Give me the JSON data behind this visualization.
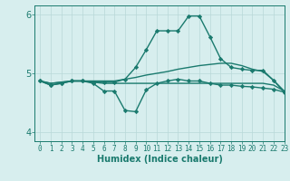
{
  "xlabel": "Humidex (Indice chaleur)",
  "bg_color": "#d7eeee",
  "line_color": "#1a7a6e",
  "grid_color": "#b8d8d8",
  "xlim": [
    -0.5,
    23
  ],
  "ylim": [
    3.85,
    6.15
  ],
  "yticks": [
    4,
    5,
    6
  ],
  "xticks": [
    0,
    1,
    2,
    3,
    4,
    5,
    6,
    7,
    8,
    9,
    10,
    11,
    12,
    13,
    14,
    15,
    16,
    17,
    18,
    19,
    20,
    21,
    22,
    23
  ],
  "series": [
    {
      "x": [
        0,
        1,
        2,
        3,
        4,
        5,
        6,
        7,
        8,
        9,
        10,
        11,
        12,
        13,
        14,
        15,
        16,
        17,
        18,
        19,
        20,
        21,
        22,
        23
      ],
      "y": [
        4.87,
        4.8,
        4.83,
        4.87,
        4.87,
        4.85,
        4.85,
        4.85,
        4.9,
        5.1,
        5.4,
        5.72,
        5.72,
        5.72,
        5.97,
        5.97,
        5.62,
        5.25,
        5.1,
        5.07,
        5.05,
        5.05,
        4.88,
        4.68
      ],
      "marker": "D",
      "markersize": 2.2,
      "linewidth": 1.0
    },
    {
      "x": [
        0,
        1,
        2,
        3,
        4,
        5,
        6,
        7,
        8,
        9,
        10,
        11,
        12,
        13,
        14,
        15,
        16,
        17,
        18,
        19,
        20,
        21,
        22,
        23
      ],
      "y": [
        4.87,
        4.8,
        4.83,
        4.87,
        4.87,
        4.83,
        4.7,
        4.7,
        4.37,
        4.35,
        4.72,
        4.83,
        4.87,
        4.9,
        4.87,
        4.87,
        4.83,
        4.8,
        4.8,
        4.78,
        4.77,
        4.75,
        4.73,
        4.68
      ],
      "marker": "D",
      "markersize": 2.2,
      "linewidth": 1.0
    },
    {
      "x": [
        0,
        1,
        2,
        3,
        4,
        5,
        6,
        7,
        8,
        9,
        10,
        11,
        12,
        13,
        14,
        15,
        16,
        17,
        18,
        19,
        20,
        21,
        22,
        23
      ],
      "y": [
        4.87,
        4.83,
        4.85,
        4.87,
        4.87,
        4.87,
        4.87,
        4.87,
        4.9,
        4.93,
        4.97,
        5.0,
        5.03,
        5.07,
        5.1,
        5.13,
        5.15,
        5.17,
        5.17,
        5.13,
        5.07,
        5.03,
        4.88,
        4.7
      ],
      "marker": null,
      "markersize": 0,
      "linewidth": 1.0
    },
    {
      "x": [
        0,
        1,
        2,
        3,
        4,
        5,
        6,
        7,
        8,
        9,
        10,
        11,
        12,
        13,
        14,
        15,
        16,
        17,
        18,
        19,
        20,
        21,
        22,
        23
      ],
      "y": [
        4.87,
        4.83,
        4.85,
        4.87,
        4.87,
        4.85,
        4.83,
        4.83,
        4.83,
        4.83,
        4.83,
        4.83,
        4.83,
        4.83,
        4.83,
        4.83,
        4.83,
        4.83,
        4.83,
        4.83,
        4.83,
        4.83,
        4.8,
        4.7
      ],
      "marker": null,
      "markersize": 0,
      "linewidth": 1.0
    }
  ]
}
